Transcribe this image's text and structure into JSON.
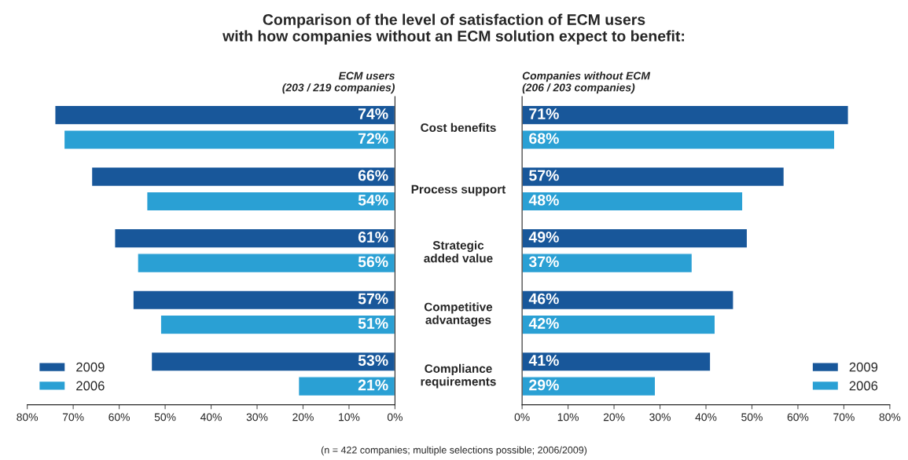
{
  "chart_data": [
    {
      "type": "bar",
      "orientation": "horizontal",
      "title": "Comparison of the level of satisfaction of ECM users\nwith how companies without an ECM solution expect to benefit:",
      "subtitle": "ECM users\n(203 / 219 companies)",
      "categories": [
        "Cost benefits",
        "Process support",
        "Strategic\nadded value",
        "Competitive\nadvantages",
        "Compliance\nrequirements"
      ],
      "series": [
        {
          "name": "2009",
          "color": "#18579a",
          "values": [
            74,
            66,
            61,
            57,
            53
          ],
          "value_labels": [
            "74%",
            "66%",
            "61%",
            "57%",
            "53%"
          ]
        },
        {
          "name": "2006",
          "color": "#2aa0d4",
          "values": [
            72,
            54,
            56,
            51,
            21
          ],
          "value_labels": [
            "72%",
            "54%",
            "56%",
            "51%",
            "21%"
          ]
        }
      ],
      "xlim": [
        80,
        0
      ],
      "xticks": [
        {
          "value": 80,
          "label": "80%"
        },
        {
          "value": 70,
          "label": "70%"
        },
        {
          "value": 60,
          "label": "60%"
        },
        {
          "value": 50,
          "label": "50%"
        },
        {
          "value": 40,
          "label": "40%"
        },
        {
          "value": 30,
          "label": "30%"
        },
        {
          "value": 20,
          "label": "20%"
        },
        {
          "value": 10,
          "label": "10%"
        },
        {
          "value": 0,
          "label": "0%"
        }
      ],
      "legend": "bottom left",
      "grid": false,
      "annotations": [
        "(n = 422 companies; multiple selections possible; 2006/2009)"
      ]
    },
    {
      "type": "bar",
      "orientation": "horizontal",
      "subtitle": "Companies without ECM\n(206 / 203 companies)",
      "categories": [
        "Cost benefits",
        "Process support",
        "Strategic\nadded value",
        "Competitive\nadvantages",
        "Compliance\nrequirements"
      ],
      "series": [
        {
          "name": "2009",
          "color": "#18579a",
          "values": [
            71,
            57,
            49,
            46,
            41
          ],
          "value_labels": [
            "71%",
            "57%",
            "49%",
            "46%",
            "41%"
          ]
        },
        {
          "name": "2006",
          "color": "#2aa0d4",
          "values": [
            68,
            48,
            37,
            42,
            29
          ],
          "value_labels": [
            "68%",
            "48%",
            "37%",
            "42%",
            "29%"
          ]
        }
      ],
      "xlim": [
        0,
        80
      ],
      "xticks": [
        {
          "value": 0,
          "label": "0%"
        },
        {
          "value": 10,
          "label": "10%"
        },
        {
          "value": 20,
          "label": "20%"
        },
        {
          "value": 30,
          "label": "30%"
        },
        {
          "value": 40,
          "label": "40%"
        },
        {
          "value": 50,
          "label": "50%"
        },
        {
          "value": 60,
          "label": "60%"
        },
        {
          "value": 70,
          "label": "70%"
        },
        {
          "value": 80,
          "label": "80%"
        }
      ],
      "legend": "bottom right",
      "grid": false,
      "tick_labels": "x"
    }
  ]
}
